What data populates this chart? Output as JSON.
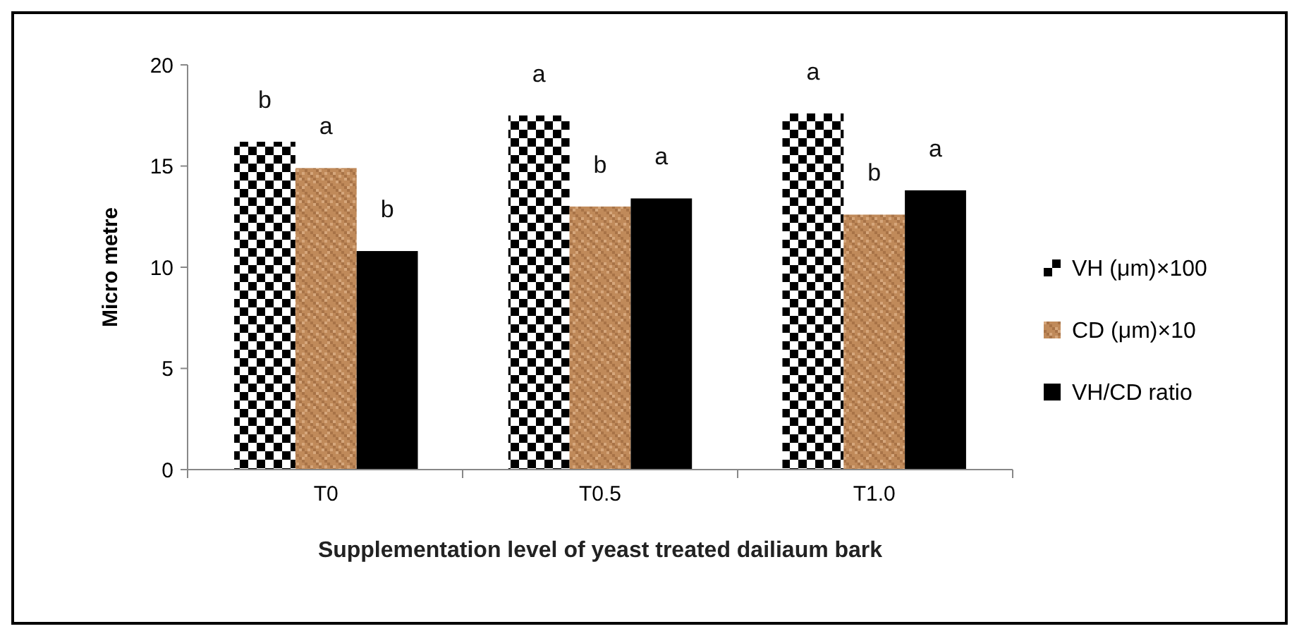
{
  "chart_data": {
    "type": "bar",
    "xlabel": "Supplementation level of yeast treated dailiaum bark",
    "ylabel": "Micro metre",
    "categories": [
      "T0",
      "T0.5",
      "T1.0"
    ],
    "series": [
      {
        "name": "VH (μm)×100",
        "color": "#000000",
        "values": [
          16.2,
          17.5,
          17.6
        ]
      },
      {
        "name": "CD (μm)×10",
        "color": "#c08a5a",
        "values": [
          14.9,
          13.0,
          12.6
        ]
      },
      {
        "name": "VH/CD ratio",
        "color": "#000000",
        "values": [
          10.8,
          13.4,
          13.8
        ]
      }
    ],
    "ylim": [
      0,
      20
    ],
    "yticks": [
      0,
      5,
      10,
      15,
      20
    ],
    "grid": false,
    "legend": "right",
    "annotations": [
      "b",
      "a",
      "b",
      "a",
      "b",
      "a",
      "a",
      "b",
      "a"
    ]
  }
}
